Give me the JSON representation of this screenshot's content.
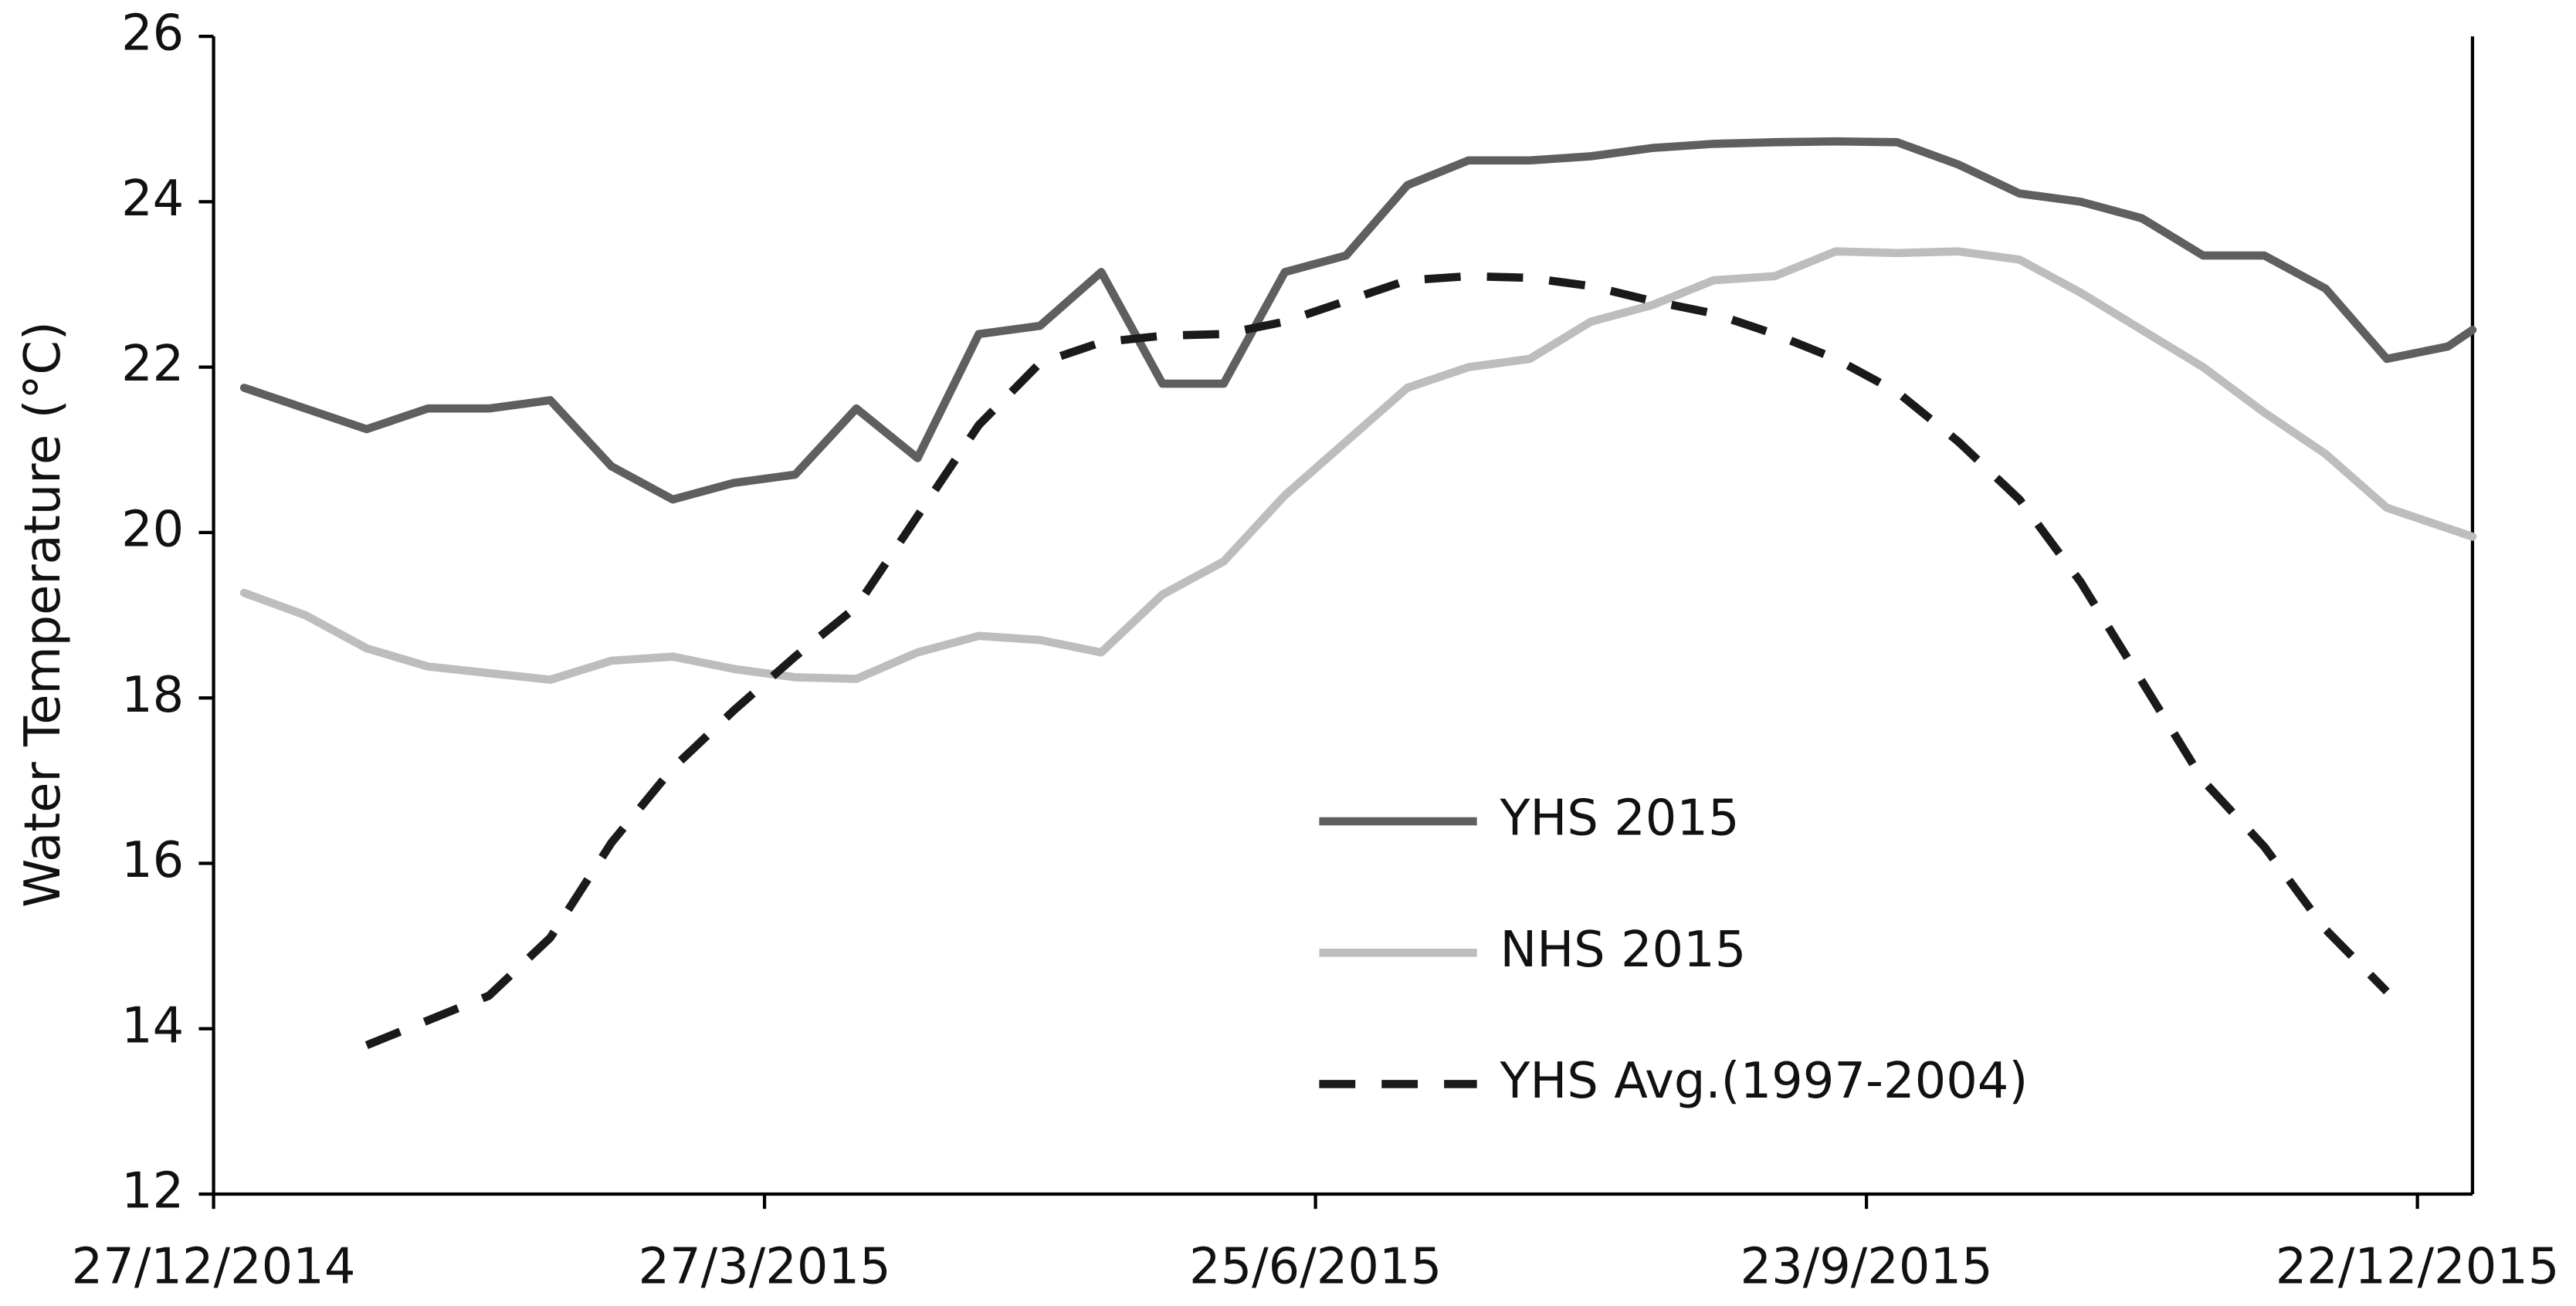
{
  "chart_data": {
    "type": "line",
    "y_label": "Water Temperature (°C)",
    "x": [
      "2015-01-01",
      "2015-01-11",
      "2015-01-21",
      "2015-01-31",
      "2015-02-10",
      "2015-02-20",
      "2015-03-02",
      "2015-03-12",
      "2015-03-22",
      "2015-04-01",
      "2015-04-11",
      "2015-04-21",
      "2015-05-01",
      "2015-05-11",
      "2015-05-21",
      "2015-05-31",
      "2015-06-10",
      "2015-06-20",
      "2015-06-30",
      "2015-07-10",
      "2015-07-20",
      "2015-07-30",
      "2015-08-09",
      "2015-08-19",
      "2015-08-29",
      "2015-09-08",
      "2015-09-18",
      "2015-09-28",
      "2015-10-08",
      "2015-10-18",
      "2015-10-28",
      "2015-11-07",
      "2015-11-17",
      "2015-11-27",
      "2015-12-07",
      "2015-12-17",
      "2015-12-27",
      "2015-12-31"
    ],
    "series": [
      {
        "name": "YHS 2015",
        "color": "#5f5f5f",
        "dashed": false,
        "values": [
          21.75,
          21.5,
          21.25,
          21.5,
          21.5,
          21.6,
          20.8,
          20.4,
          20.6,
          20.7,
          21.5,
          20.9,
          22.4,
          22.5,
          23.15,
          21.8,
          21.8,
          23.15,
          23.35,
          24.2,
          24.5,
          24.5,
          24.55,
          24.65,
          24.7,
          24.72,
          24.73,
          24.72,
          24.45,
          24.1,
          24.0,
          23.8,
          23.35,
          23.35,
          22.95,
          22.1,
          22.25,
          22.45
        ]
      },
      {
        "name": "NHS 2015",
        "color": "#bdbdbd",
        "dashed": false,
        "values": [
          19.27,
          19.0,
          18.6,
          18.38,
          18.3,
          18.22,
          18.45,
          18.5,
          18.35,
          18.25,
          18.23,
          18.55,
          18.75,
          18.7,
          18.55,
          19.25,
          19.65,
          20.45,
          21.1,
          21.75,
          22.0,
          22.1,
          22.55,
          22.75,
          23.05,
          23.1,
          23.4,
          23.38,
          23.4,
          23.3,
          22.9,
          22.45,
          22.0,
          21.45,
          20.95,
          20.3,
          20.05,
          19.95
        ]
      },
      {
        "name": "YHS Avg.(1997-2004)",
        "color": "#1a1a1a",
        "dashed": true,
        "values": [
          null,
          null,
          13.8,
          14.1,
          14.4,
          15.1,
          16.25,
          17.15,
          17.85,
          18.5,
          19.1,
          20.2,
          21.3,
          22.05,
          22.3,
          22.38,
          22.4,
          22.55,
          22.8,
          23.05,
          23.1,
          23.08,
          22.98,
          22.8,
          22.65,
          22.4,
          22.1,
          21.7,
          21.1,
          20.4,
          19.4,
          18.2,
          17.0,
          16.2,
          15.2,
          14.45,
          null,
          null
        ]
      }
    ],
    "xlim": [
      "2014-12-27",
      "2015-12-31"
    ],
    "xticks": [
      {
        "value": "2014-12-27",
        "label": "27/12/2014"
      },
      {
        "value": "2015-03-27",
        "label": "27/3/2015"
      },
      {
        "value": "2015-06-25",
        "label": "25/6/2015"
      },
      {
        "value": "2015-09-23",
        "label": "23/9/2015"
      },
      {
        "value": "2015-12-22",
        "label": "22/12/2015"
      }
    ],
    "ylim": [
      12,
      26
    ],
    "yticks": [
      12,
      14,
      16,
      18,
      20,
      22,
      24,
      26
    ],
    "grid": false,
    "legend_position": "center"
  }
}
